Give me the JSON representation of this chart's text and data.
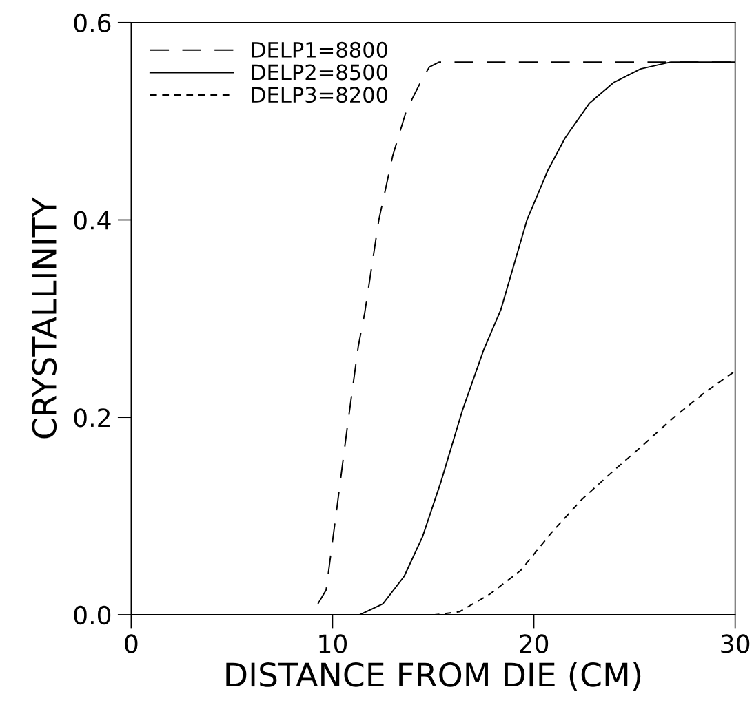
{
  "chart_data": {
    "type": "line",
    "xlabel": "DISTANCE FROM DIE (CM)",
    "ylabel": "CRYSTALLINITY",
    "xlim": [
      0,
      30
    ],
    "ylim": [
      0,
      0.6
    ],
    "xticks": [
      0,
      10,
      20,
      30
    ],
    "yticks": [
      {
        "value": 0,
        "label": "0.0"
      },
      {
        "value": 0.2,
        "label": "0.2"
      },
      {
        "value": 0.4,
        "label": "0.4"
      },
      {
        "value": 0.6,
        "label": "0.6"
      }
    ],
    "grid": false,
    "legend": "top left",
    "marker": "none",
    "series": [
      {
        "name": "DELP1=8800",
        "color": "#000000",
        "line_style": "dashed",
        "x": [
          0,
          8.95,
          9.68,
          10.21,
          10.74,
          11.28,
          11.6,
          12.3,
          12.99,
          13.67,
          14.36,
          14.81,
          15.3,
          30
        ],
        "values": [
          0,
          0,
          0.025,
          0.107,
          0.191,
          0.272,
          0.306,
          0.4,
          0.465,
          0.511,
          0.539,
          0.555,
          0.56,
          0.56
        ]
      },
      {
        "name": "DELP2=8500",
        "color": "#000000",
        "line_style": "solid",
        "x": [
          0,
          11.35,
          12.5,
          13.56,
          14.47,
          15.39,
          16.45,
          17.52,
          18.36,
          19.66,
          20.69,
          21.55,
          22.75,
          23.95,
          25.3,
          26.8,
          30
        ],
        "values": [
          0,
          0,
          0.011,
          0.039,
          0.079,
          0.135,
          0.207,
          0.269,
          0.309,
          0.4,
          0.45,
          0.483,
          0.518,
          0.539,
          0.553,
          0.56,
          0.56
        ]
      },
      {
        "name": "DELP3=8200",
        "color": "#000000",
        "line_style": "dashed",
        "x": [
          0,
          15.07,
          16.3,
          17.82,
          19.35,
          20.87,
          22.39,
          23.91,
          25.43,
          26.95,
          28.48,
          30
        ],
        "values": [
          0,
          0,
          0.003,
          0.021,
          0.045,
          0.083,
          0.117,
          0.145,
          0.172,
          0.2,
          0.225,
          0.247
        ]
      }
    ]
  }
}
